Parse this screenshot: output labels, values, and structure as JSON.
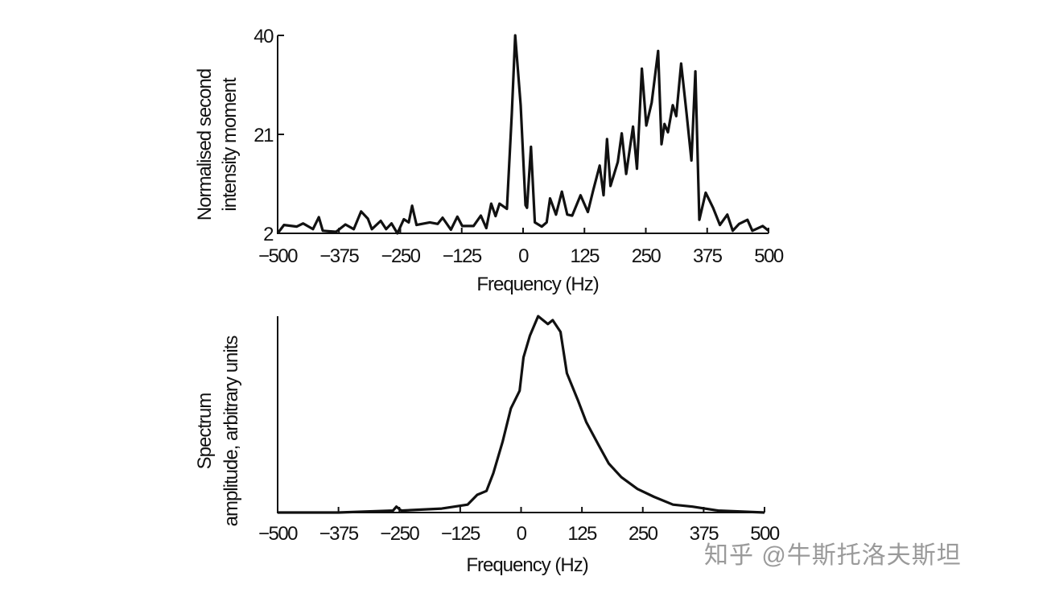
{
  "chart_data": [
    {
      "type": "line",
      "title": "",
      "xlabel": "Frequency (Hz)",
      "ylabel_lines": [
        "Normalised second",
        "intensity moment"
      ],
      "xlim": [
        -500,
        500
      ],
      "ylim": [
        2,
        40
      ],
      "xticks": [
        "−500",
        "−375",
        "−250",
        "−125",
        "0",
        "125",
        "250",
        "375",
        "500"
      ],
      "xtick_values": [
        -500,
        -375,
        -250,
        -125,
        0,
        125,
        250,
        375,
        500
      ],
      "yticks": [
        "2",
        "21",
        "40"
      ],
      "ytick_values": [
        2,
        21,
        40
      ],
      "grid": false,
      "series": [
        {
          "name": "second intensity moment",
          "x": [
            -500,
            -487,
            -461,
            -448,
            -428,
            -416,
            -408,
            -381,
            -362,
            -345,
            -330,
            -316,
            -308,
            -290,
            -279,
            -268,
            -256,
            -243,
            -233,
            -226,
            -217,
            -190,
            -174,
            -164,
            -147,
            -134,
            -124,
            -101,
            -86,
            -75,
            -65,
            -56,
            -48,
            -33,
            -23,
            -16,
            -5,
            5,
            8,
            16,
            24,
            38,
            48,
            55,
            67,
            79,
            90,
            100,
            117,
            132,
            143,
            156,
            164,
            171,
            178,
            193,
            201,
            210,
            224,
            232,
            242,
            251,
            262,
            275,
            282,
            288,
            295,
            305,
            312,
            322,
            333,
            343,
            351,
            359,
            372,
            387,
            401,
            416,
            427,
            440,
            457,
            467,
            488,
            500
          ],
          "y": [
            2,
            3.6,
            3.3,
            3.9,
            2.8,
            5.1,
            2.5,
            2.3,
            3.7,
            2.8,
            6.2,
            4.8,
            2.8,
            4.4,
            2.8,
            3.9,
            2,
            4.7,
            4.1,
            7.3,
            3.6,
            4.1,
            3.8,
            5.0,
            2.7,
            5.2,
            3.4,
            3.4,
            5.4,
            3.0,
            7.7,
            5.3,
            7.7,
            6.7,
            25,
            40,
            26.6,
            7.4,
            6.9,
            18.6,
            4.1,
            3.3,
            4.1,
            8.7,
            5.6,
            10,
            5.6,
            5.4,
            9.3,
            6.1,
            10.3,
            15,
            9.3,
            20.1,
            11.1,
            15.7,
            21.2,
            13.4,
            22.5,
            14.4,
            33.6,
            22.7,
            27.1,
            37,
            19.1,
            23,
            21.4,
            26.6,
            24.5,
            34.6,
            25.1,
            16,
            33.1,
            4.6,
            9.8,
            6.9,
            3.6,
            5.6,
            2.5,
            3.8,
            4.6,
            2.5,
            3.4,
            2.5
          ]
        }
      ]
    },
    {
      "type": "line",
      "title": "",
      "xlabel": "Frequency (Hz)",
      "ylabel_lines": [
        "Spectrum",
        "amplitude, arbitrary units"
      ],
      "xlim": [
        -500,
        500
      ],
      "ylim": [
        0,
        1
      ],
      "xticks": [
        "−500",
        "−375",
        "−250",
        "−125",
        "0",
        "125",
        "250",
        "375",
        "500"
      ],
      "xtick_values": [
        -500,
        -375,
        -250,
        -125,
        0,
        125,
        250,
        375,
        500
      ],
      "yticks": [],
      "grid": false,
      "series": [
        {
          "name": "spectrum amplitude",
          "x": [
            -500,
            -375,
            -263,
            -256,
            -246,
            -163,
            -137,
            -110,
            -90,
            -71,
            -57,
            -38,
            -21,
            -3,
            5,
            18,
            35,
            55,
            65,
            81,
            94,
            117,
            134,
            160,
            180,
            206,
            239,
            273,
            312,
            352,
            405,
            500
          ],
          "y": [
            0,
            0,
            0.01,
            0.03,
            0.01,
            0.02,
            0.03,
            0.04,
            0.09,
            0.11,
            0.2,
            0.36,
            0.53,
            0.62,
            0.79,
            0.9,
            1.0,
            0.96,
            0.98,
            0.92,
            0.71,
            0.57,
            0.46,
            0.34,
            0.25,
            0.18,
            0.12,
            0.08,
            0.04,
            0.03,
            0.01,
            0
          ]
        }
      ]
    }
  ],
  "watermark": "知乎 @牛斯托洛夫斯坦"
}
